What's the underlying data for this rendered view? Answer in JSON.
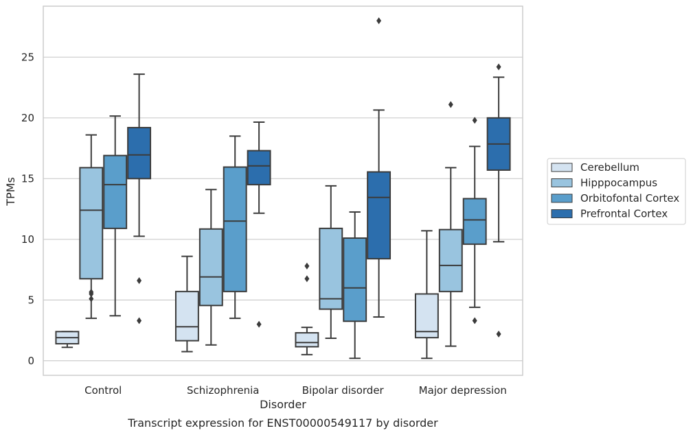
{
  "caption": "Transcript expression for ENST00000549117 by disorder",
  "chart_data": {
    "type": "box",
    "xlabel": "Disorder",
    "ylabel": "TPMs",
    "ylim": [
      -1.2,
      29.2
    ],
    "yticks": [
      0,
      5,
      10,
      15,
      20,
      25
    ],
    "grid": "horizontal",
    "legend_placement": "right",
    "categories": [
      "Control",
      "Schizophrenia",
      "Bipolar disorder",
      "Major depression"
    ],
    "series": [
      {
        "name": "Cerebellum",
        "color": "#d4e3f1",
        "boxes": [
          {
            "whislo": 1.1,
            "q1": 1.4,
            "med": 1.9,
            "q3": 2.4,
            "whishi": 2.4,
            "fliers": []
          },
          {
            "whislo": 0.75,
            "q1": 1.65,
            "med": 2.8,
            "q3": 5.7,
            "whishi": 8.6,
            "fliers": []
          },
          {
            "whislo": 0.5,
            "q1": 1.15,
            "med": 1.5,
            "q3": 2.3,
            "whishi": 2.75,
            "fliers": [
              6.75,
              7.8
            ]
          },
          {
            "whislo": 0.2,
            "q1": 1.9,
            "med": 2.4,
            "q3": 5.5,
            "whishi": 10.7,
            "fliers": []
          }
        ]
      },
      {
        "name": "Hipppocampus",
        "color": "#99c4df",
        "boxes": [
          {
            "whislo": 3.5,
            "q1": 6.75,
            "med": 12.4,
            "q3": 15.9,
            "whishi": 18.6,
            "fliers": [
              5.1,
              5.5,
              5.65
            ]
          },
          {
            "whislo": 1.3,
            "q1": 4.55,
            "med": 6.9,
            "q3": 10.85,
            "whishi": 14.1,
            "fliers": []
          },
          {
            "whislo": 1.85,
            "q1": 4.25,
            "med": 5.1,
            "q3": 10.9,
            "whishi": 14.4,
            "fliers": []
          },
          {
            "whislo": 1.2,
            "q1": 5.7,
            "med": 7.85,
            "q3": 10.8,
            "whishi": 15.9,
            "fliers": [
              21.1
            ]
          }
        ]
      },
      {
        "name": "Orbitofontal Cortex",
        "color": "#5a9ecb",
        "boxes": [
          {
            "whislo": 3.7,
            "q1": 10.9,
            "med": 14.5,
            "q3": 16.9,
            "whishi": 20.15,
            "fliers": []
          },
          {
            "whislo": 3.5,
            "q1": 5.7,
            "med": 11.5,
            "q3": 15.95,
            "whishi": 18.5,
            "fliers": []
          },
          {
            "whislo": 0.2,
            "q1": 3.25,
            "med": 6.0,
            "q3": 10.1,
            "whishi": 12.25,
            "fliers": []
          },
          {
            "whislo": 4.4,
            "q1": 9.6,
            "med": 11.6,
            "q3": 13.35,
            "whishi": 17.65,
            "fliers": [
              3.3,
              19.8
            ]
          }
        ]
      },
      {
        "name": "Prefrontal Cortex",
        "color": "#2c6ead",
        "boxes": [
          {
            "whislo": 10.25,
            "q1": 15.0,
            "med": 16.95,
            "q3": 19.2,
            "whishi": 23.6,
            "fliers": [
              3.3,
              6.6
            ]
          },
          {
            "whislo": 12.15,
            "q1": 14.5,
            "med": 16.05,
            "q3": 17.3,
            "whishi": 19.65,
            "fliers": [
              3.0
            ]
          },
          {
            "whislo": 3.6,
            "q1": 8.4,
            "med": 13.45,
            "q3": 15.55,
            "whishi": 20.65,
            "fliers": [
              28.0
            ]
          },
          {
            "whislo": 9.8,
            "q1": 15.7,
            "med": 17.85,
            "q3": 20.0,
            "whishi": 23.35,
            "fliers": [
              2.2,
              24.2
            ]
          }
        ]
      }
    ]
  }
}
